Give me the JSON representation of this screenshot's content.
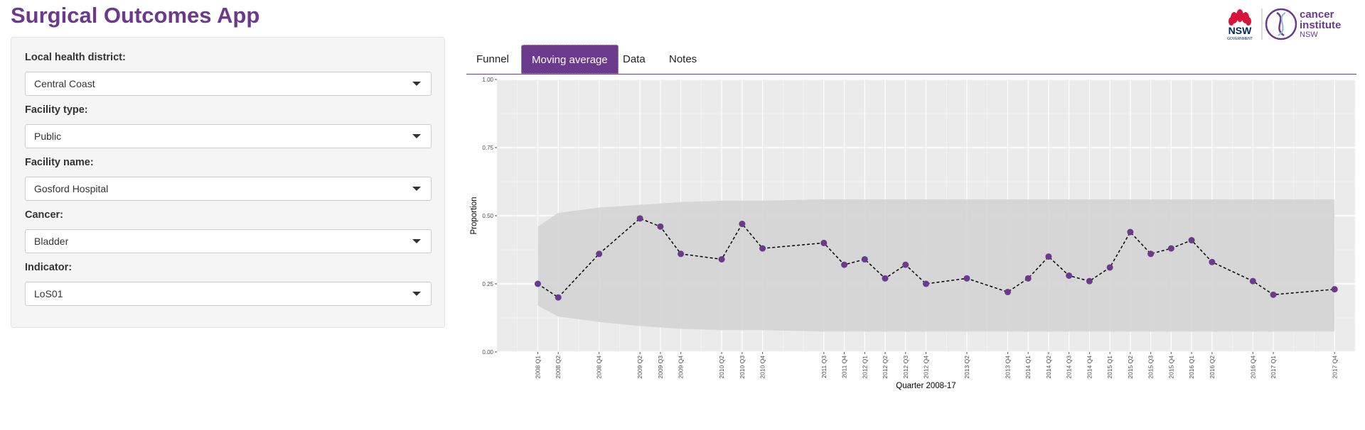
{
  "app": {
    "title": "Surgical Outcomes App"
  },
  "brand": {
    "nsw": "NSW",
    "government": "GOVERNMENT",
    "ci_line1": "cancer",
    "ci_line2": "institute",
    "ci_line3": "NSW"
  },
  "colors": {
    "accent": "#6b3a8c",
    "panel_bg": "#ebebeb",
    "band": "#d4d4d4",
    "nsw_red": "#d7153a",
    "nsw_navy": "#002664"
  },
  "sidebar": {
    "fields": [
      {
        "label": "Local health district:",
        "value": "Central Coast"
      },
      {
        "label": "Facility type:",
        "value": "Public"
      },
      {
        "label": "Facility name:",
        "value": "Gosford Hospital"
      },
      {
        "label": "Cancer:",
        "value": "Bladder"
      },
      {
        "label": "Indicator:",
        "value": "LoS01"
      }
    ]
  },
  "tabs": [
    {
      "label": "Funnel",
      "active": false
    },
    {
      "label": "Moving average",
      "active": true
    },
    {
      "label": "Data",
      "active": false
    },
    {
      "label": "Notes",
      "active": false
    }
  ],
  "chart_data": {
    "type": "line",
    "xlabel": "Quarter 2008-17",
    "ylabel": "Proportion",
    "ylim": [
      0,
      1
    ],
    "yticks": [
      "0.00",
      "0.25",
      "0.50",
      "0.75",
      "1.00"
    ],
    "grid": true,
    "x_range": [
      "2007 Q3",
      "2018 Q1"
    ],
    "categories": [
      "2008 Q1",
      "2008 Q2",
      "2008 Q4",
      "2009 Q2",
      "2009 Q3",
      "2009 Q4",
      "2010 Q2",
      "2010 Q3",
      "2010 Q4",
      "2011 Q3",
      "2011 Q4",
      "2012 Q1",
      "2012 Q2",
      "2012 Q3",
      "2012 Q4",
      "2013 Q2",
      "2013 Q4",
      "2014 Q1",
      "2014 Q2",
      "2014 Q3",
      "2014 Q4",
      "2015 Q1",
      "2015 Q2",
      "2015 Q3",
      "2015 Q4",
      "2016 Q1",
      "2016 Q2",
      "2016 Q4",
      "2017 Q1",
      "2017 Q4"
    ],
    "series": [
      {
        "values": [
          0.25,
          0.2,
          0.36,
          0.49,
          0.46,
          0.36,
          0.34,
          0.47,
          0.38,
          0.4,
          0.32,
          0.34,
          0.27,
          0.32,
          0.25,
          0.27,
          0.22,
          0.27,
          0.35,
          0.28,
          0.26,
          0.31,
          0.44,
          0.36,
          0.38,
          0.41,
          0.33,
          0.26,
          0.21,
          0.23
        ]
      }
    ],
    "band_upper": [
      0.46,
      0.51,
      0.53,
      0.54,
      0.545,
      0.55,
      0.555,
      0.555,
      0.555,
      0.56,
      0.56,
      0.56,
      0.56,
      0.56,
      0.56,
      0.56,
      0.56,
      0.56,
      0.56,
      0.56,
      0.56,
      0.56,
      0.56,
      0.56,
      0.56,
      0.56,
      0.56,
      0.56,
      0.56,
      0.56
    ],
    "band_lower": [
      0.17,
      0.13,
      0.11,
      0.095,
      0.09,
      0.085,
      0.08,
      0.08,
      0.08,
      0.075,
      0.075,
      0.075,
      0.075,
      0.075,
      0.075,
      0.075,
      0.075,
      0.075,
      0.075,
      0.075,
      0.075,
      0.075,
      0.075,
      0.075,
      0.075,
      0.075,
      0.075,
      0.075,
      0.075,
      0.075
    ]
  }
}
